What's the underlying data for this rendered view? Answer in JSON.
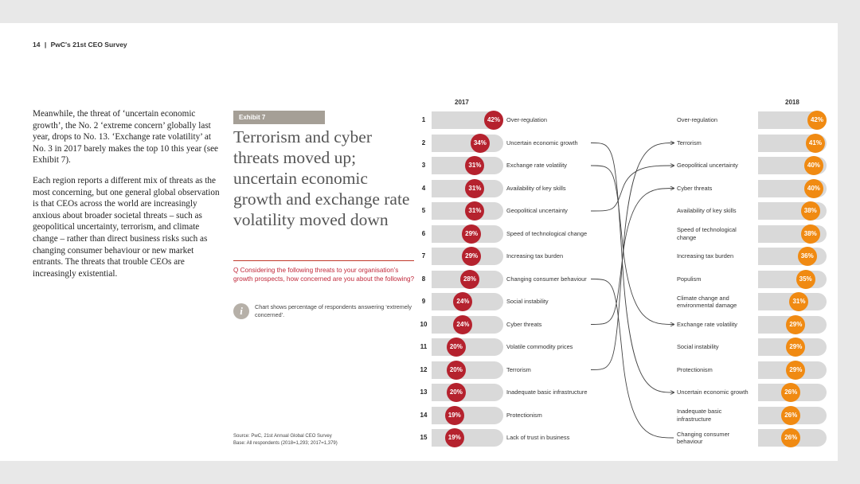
{
  "header": {
    "page_number": "14",
    "separator": "|",
    "title": "PwC's 21st CEO Survey"
  },
  "body_paragraphs": [
    "Meanwhile, the threat of ‘uncertain economic growth’, the No. 2 ‘extreme concern’ globally last year, drops to No. 13. ‘Exchange rate volatility’ at No. 3 in 2017 barely makes the top 10 this year (see Exhibit 7).",
    "Each region reports a different mix of threats as the most concerning, but one general global observation is that CEOs across the world are increasingly anxious about broader societal threats – such as geopolitical uncertainty, terrorism, and climate change – rather than direct business risks such as changing consumer behaviour or new market entrants. The threats that trouble CEOs are increasingly existential."
  ],
  "exhibit": {
    "tag": "Exhibit 7",
    "title": "Terrorism and cyber threats moved up; uncertain economic growth and exchange rate volatility moved down",
    "question": "Q Considering the following threats to your organisation’s growth prospects, how concerned are you about the following?",
    "info_icon": "info-icon",
    "note": "Chart shows percentage of respondents answering ‘extremely concerned’.",
    "source_line1": "Source: PwC, 21st Annual Global CEO Survey",
    "source_line2": "Base: All respondents (2018=1,293; 2017=1,379)"
  },
  "colors": {
    "left_accent": "#b5222e",
    "right_accent": "#f08a12",
    "bar": "#d9d9d9"
  },
  "chart_data": {
    "type": "bar",
    "year_left": "2017",
    "year_right": "2018",
    "ranks": [
      "1",
      "2",
      "3",
      "4",
      "5",
      "6",
      "7",
      "8",
      "9",
      "10",
      "11",
      "12",
      "13",
      "14",
      "15"
    ],
    "left_series": [
      {
        "label": "Over-regulation",
        "value": 42,
        "text": "42%"
      },
      {
        "label": "Uncertain economic growth",
        "value": 34,
        "text": "34%"
      },
      {
        "label": "Exchange rate volatility",
        "value": 31,
        "text": "31%"
      },
      {
        "label": "Availability of key skills",
        "value": 31,
        "text": "31%"
      },
      {
        "label": "Geopolitical uncertainty",
        "value": 31,
        "text": "31%"
      },
      {
        "label": "Speed of technological change",
        "value": 29,
        "text": "29%"
      },
      {
        "label": "Increasing tax burden",
        "value": 29,
        "text": "29%"
      },
      {
        "label": "Changing consumer behaviour",
        "value": 28,
        "text": "28%"
      },
      {
        "label": "Social instability",
        "value": 24,
        "text": "24%"
      },
      {
        "label": "Cyber threats",
        "value": 24,
        "text": "24%"
      },
      {
        "label": "Volatile commodity prices",
        "value": 20,
        "text": "20%"
      },
      {
        "label": "Terrorism",
        "value": 20,
        "text": "20%"
      },
      {
        "label": "Inadequate basic infrastructure",
        "value": 20,
        "text": "20%"
      },
      {
        "label": "Protectionism",
        "value": 19,
        "text": "19%"
      },
      {
        "label": "Lack of trust in business",
        "value": 19,
        "text": "19%"
      }
    ],
    "right_series": [
      {
        "label": "Over-regulation",
        "value": 42,
        "text": "42%"
      },
      {
        "label": "Terrorism",
        "value": 41,
        "text": "41%"
      },
      {
        "label": "Geopolitical uncertainty",
        "value": 40,
        "text": "40%"
      },
      {
        "label": "Cyber threats",
        "value": 40,
        "text": "40%"
      },
      {
        "label": "Availability of key skills",
        "value": 38,
        "text": "38%"
      },
      {
        "label": "Speed of technological change",
        "value": 38,
        "text": "38%"
      },
      {
        "label": "Increasing tax burden",
        "value": 36,
        "text": "36%"
      },
      {
        "label": "Populism",
        "value": 35,
        "text": "35%"
      },
      {
        "label": "Climate change and environmental damage",
        "value": 31,
        "text": "31%"
      },
      {
        "label": "Exchange rate volatility",
        "value": 29,
        "text": "29%"
      },
      {
        "label": "Social instability",
        "value": 29,
        "text": "29%"
      },
      {
        "label": "Protectionism",
        "value": 29,
        "text": "29%"
      },
      {
        "label": "Uncertain economic growth",
        "value": 26,
        "text": "26%"
      },
      {
        "label": "Inadequate basic infrastructure",
        "value": 26,
        "text": "26%"
      },
      {
        "label": "Changing consumer behaviour",
        "value": 26,
        "text": "26%"
      }
    ],
    "connections": [
      {
        "from_rank": 2,
        "to_rank": 13
      },
      {
        "from_rank": 3,
        "to_rank": 10
      },
      {
        "from_rank": 5,
        "to_rank": 3
      },
      {
        "from_rank": 8,
        "to_rank": 15
      },
      {
        "from_rank": 10,
        "to_rank": 4
      },
      {
        "from_rank": 12,
        "to_rank": 2
      }
    ],
    "arrow_ranks": [
      2,
      3,
      4,
      10,
      13
    ]
  }
}
